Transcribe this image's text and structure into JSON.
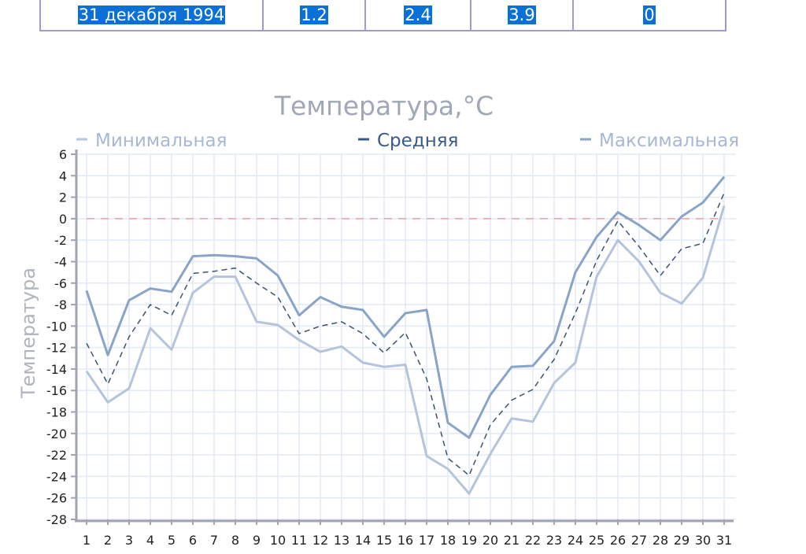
{
  "table_row": {
    "cells": [
      "31 декабря 1994",
      "1.2",
      "2.4",
      "3.9",
      "0"
    ]
  },
  "chart_data": {
    "type": "line",
    "title": "Температура,°C",
    "xlabel": "",
    "ylabel": "Температура",
    "xlim": [
      1,
      31
    ],
    "ylim": [
      -28,
      6
    ],
    "ytick_step": 2,
    "grid": true,
    "legend_placement": "top",
    "x": [
      1,
      2,
      3,
      4,
      5,
      6,
      7,
      8,
      9,
      10,
      11,
      12,
      13,
      14,
      15,
      16,
      17,
      18,
      19,
      20,
      21,
      22,
      23,
      24,
      25,
      26,
      27,
      28,
      29,
      30,
      31
    ],
    "series": [
      {
        "name": "Минимальная",
        "color": "#b4c4dc",
        "style": "solid",
        "values": [
          -14.2,
          -17.1,
          -15.8,
          -10.2,
          -12.2,
          -6.9,
          -5.4,
          -5.4,
          -9.6,
          -9.9,
          -11.3,
          -12.4,
          -11.9,
          -13.4,
          -13.8,
          -13.6,
          -22.1,
          -23.3,
          -25.6,
          -21.9,
          -18.6,
          -18.9,
          -15.3,
          -13.4,
          -5.4,
          -2.0,
          -4.0,
          -6.9,
          -7.9,
          -5.5,
          1.2
        ]
      },
      {
        "name": "Средняя",
        "color": "#3a5272",
        "style": "dashed",
        "values": [
          -11.6,
          -15.4,
          -11.0,
          -8.0,
          -9.0,
          -5.1,
          -4.9,
          -4.6,
          -6.0,
          -7.3,
          -10.7,
          -10.0,
          -9.6,
          -10.7,
          -12.5,
          -10.6,
          -14.9,
          -22.3,
          -23.9,
          -19.2,
          -16.9,
          -15.9,
          -13.1,
          -8.8,
          -3.9,
          -0.2,
          -2.6,
          -5.3,
          -2.8,
          -2.3,
          2.4
        ]
      },
      {
        "name": "Максимальная",
        "color": "#8aa4c8",
        "style": "solid",
        "values": [
          -6.7,
          -12.7,
          -7.6,
          -6.5,
          -6.8,
          -3.5,
          -3.4,
          -3.5,
          -3.7,
          -5.3,
          -9.0,
          -7.3,
          -8.2,
          -8.5,
          -11.0,
          -8.8,
          -8.5,
          -19.0,
          -20.4,
          -16.4,
          -13.8,
          -13.7,
          -11.4,
          -5.0,
          -1.7,
          0.6,
          -0.6,
          -2.0,
          0.2,
          1.5,
          3.9
        ]
      }
    ],
    "reference_line": {
      "value": 0,
      "color": "#f0a0a8",
      "style": "dashed"
    },
    "colors": {
      "title": "#a0a8b8",
      "axis": "#a0a4b0",
      "grid": "#e2eaf6",
      "legend_mean_text": "#3a5a8a",
      "legend_other_text": "#a8b8d4"
    }
  }
}
